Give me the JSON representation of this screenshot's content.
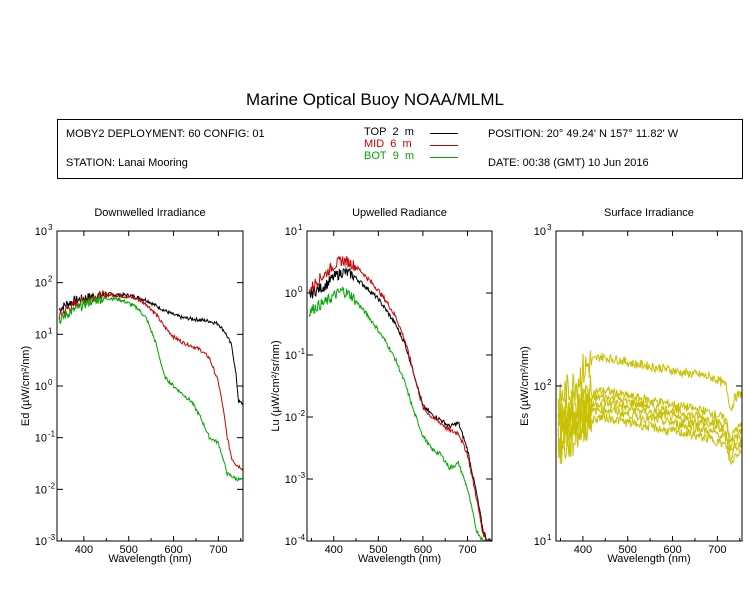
{
  "title": "Marine Optical Buoy NOAA/MLML",
  "info": {
    "deployment": "MOBY2 DEPLOYMENT: 60 CONFIG: 01",
    "station": "STATION: Lanai Mooring",
    "position": "POSITION: 20° 49.24' N   157° 11.82' W",
    "date": "DATE: 00:38 (GMT) 10 Jun 2016"
  },
  "legend": [
    {
      "name": "TOP",
      "depth": "2",
      "unit": "m",
      "color": "#000000"
    },
    {
      "name": "MID",
      "depth": "6",
      "unit": "m",
      "color": "#cc0000"
    },
    {
      "name": "BOT",
      "depth": "9",
      "unit": "m",
      "color": "#00aa00"
    }
  ],
  "chart_data": [
    {
      "type": "line",
      "title": "Downwelled Irradiance",
      "xlabel": "Wavelength (nm)",
      "ylabel": "Ed (µW/cm²/nm)",
      "xlim": [
        340,
        755
      ],
      "ylim": [
        0.001,
        1000
      ],
      "yscale": "log",
      "x_ticks": [
        400,
        500,
        600,
        700
      ],
      "y_ticks": [
        0.001,
        0.01,
        0.1,
        1,
        10,
        100,
        1000
      ],
      "y_tick_labels": [
        [
          "10",
          "-3"
        ],
        [
          "10",
          "-2"
        ],
        [
          "10",
          "-1"
        ],
        [
          "10",
          "0"
        ],
        [
          "10",
          "1"
        ],
        [
          "10",
          "2"
        ],
        [
          "10",
          "3"
        ]
      ],
      "series": [
        {
          "name": "TOP",
          "color": "#000000",
          "x": [
            345,
            360,
            380,
            400,
            420,
            440,
            460,
            480,
            500,
            520,
            540,
            560,
            580,
            600,
            620,
            640,
            660,
            680,
            700,
            715,
            730,
            740,
            745,
            755
          ],
          "y": [
            30,
            38,
            45,
            50,
            55,
            57,
            60,
            58,
            57,
            52,
            46,
            36,
            29,
            24,
            21,
            20,
            19,
            18,
            16,
            11,
            6,
            1.5,
            0.5,
            0.45
          ]
        },
        {
          "name": "MID",
          "color": "#cc0000",
          "x": [
            345,
            360,
            380,
            400,
            420,
            440,
            460,
            480,
            500,
            520,
            540,
            560,
            580,
            600,
            620,
            640,
            660,
            680,
            700,
            710,
            720,
            730,
            740,
            755
          ],
          "y": [
            22,
            30,
            38,
            45,
            52,
            56,
            58,
            56,
            53,
            48,
            38,
            25,
            14,
            9,
            7,
            6,
            5,
            3.5,
            1.2,
            0.4,
            0.1,
            0.04,
            0.03,
            0.025
          ]
        },
        {
          "name": "BOT",
          "color": "#00aa00",
          "x": [
            345,
            360,
            380,
            400,
            420,
            440,
            460,
            480,
            500,
            520,
            540,
            560,
            580,
            600,
            620,
            640,
            660,
            680,
            700,
            710,
            720,
            730,
            740,
            755
          ],
          "y": [
            18,
            24,
            30,
            38,
            45,
            48,
            50,
            47,
            40,
            32,
            20,
            7,
            1.5,
            1,
            0.7,
            0.5,
            0.25,
            0.1,
            0.08,
            0.04,
            0.02,
            0.018,
            0.016,
            0.015
          ]
        }
      ]
    },
    {
      "type": "line",
      "title": "Upwelled Radiance",
      "xlabel": "Wavelength (nm)",
      "ylabel": "Lu (µW/cm²/sr/nm)",
      "xlim": [
        340,
        755
      ],
      "ylim": [
        0.0001,
        10
      ],
      "yscale": "log",
      "x_ticks": [
        400,
        500,
        600,
        700
      ],
      "y_ticks": [
        0.0001,
        0.001,
        0.01,
        0.1,
        1,
        10
      ],
      "y_tick_labels": [
        [
          "10",
          "-4"
        ],
        [
          "10",
          "-3"
        ],
        [
          "10",
          "-2"
        ],
        [
          "10",
          "-1"
        ],
        [
          "10",
          "0"
        ],
        [
          "10",
          "1"
        ]
      ],
      "series": [
        {
          "name": "TOP",
          "color": "#000000",
          "x": [
            345,
            360,
            380,
            400,
            420,
            440,
            460,
            480,
            500,
            520,
            540,
            560,
            580,
            600,
            620,
            640,
            660,
            680,
            700,
            720,
            735,
            745,
            755
          ],
          "y": [
            0.9,
            1.1,
            1.3,
            1.8,
            2.2,
            2,
            1.5,
            1.1,
            0.8,
            0.5,
            0.3,
            0.15,
            0.05,
            0.015,
            0.011,
            0.009,
            0.007,
            0.008,
            0.003,
            0.0006,
            0.00015,
            0.0001,
            0.0001
          ]
        },
        {
          "name": "MID",
          "color": "#cc0000",
          "x": [
            345,
            360,
            380,
            400,
            420,
            440,
            460,
            480,
            500,
            520,
            540,
            560,
            580,
            600,
            620,
            640,
            660,
            680,
            700,
            720,
            735,
            745,
            755
          ],
          "y": [
            1.1,
            1.5,
            2,
            2.8,
            3.4,
            3,
            2.3,
            1.6,
            1.1,
            0.7,
            0.4,
            0.17,
            0.05,
            0.014,
            0.01,
            0.008,
            0.006,
            0.0055,
            0.0025,
            0.0005,
            0.00013,
            0.0001,
            0.0001
          ]
        },
        {
          "name": "BOT",
          "color": "#00aa00",
          "x": [
            345,
            360,
            380,
            400,
            420,
            440,
            460,
            480,
            500,
            520,
            540,
            560,
            580,
            600,
            620,
            640,
            660,
            680,
            700,
            720,
            735,
            745,
            755
          ],
          "y": [
            0.5,
            0.6,
            0.7,
            0.9,
            1.1,
            0.9,
            0.6,
            0.4,
            0.25,
            0.15,
            0.08,
            0.035,
            0.012,
            0.005,
            0.003,
            0.0025,
            0.0015,
            0.0018,
            0.0007,
            0.00015,
            0.0001,
            0.0001,
            0.0001
          ]
        }
      ]
    },
    {
      "type": "line",
      "title": "Surface Irradiance",
      "xlabel": "Wavelength (nm)",
      "ylabel": "Es (µW/cm²/nm)",
      "xlim": [
        340,
        755
      ],
      "ylim": [
        10,
        1000
      ],
      "yscale": "log",
      "x_ticks": [
        400,
        500,
        600,
        700
      ],
      "y_ticks": [
        10,
        100,
        1000
      ],
      "y_tick_labels": [
        [
          "10",
          "1"
        ],
        [
          "10",
          "2"
        ],
        [
          "10",
          "3"
        ]
      ],
      "series": [
        {
          "name": "",
          "color": "#c8c000",
          "x": [
            345,
            360,
            380,
            400,
            420,
            440,
            460,
            480,
            500,
            520,
            540,
            560,
            580,
            600,
            620,
            640,
            660,
            680,
            700,
            720,
            730,
            740,
            755
          ],
          "y": [
            75,
            90,
            100,
            125,
            145,
            155,
            150,
            148,
            142,
            138,
            136,
            132,
            130,
            126,
            122,
            120,
            118,
            115,
            110,
            100,
            70,
            85,
            90
          ]
        },
        {
          "name": "",
          "color": "#c8c000",
          "x": [
            345,
            360,
            380,
            400,
            420,
            440,
            460,
            480,
            500,
            520,
            540,
            560,
            580,
            600,
            620,
            640,
            660,
            680,
            700,
            720,
            730,
            740,
            755
          ],
          "y": [
            55,
            65,
            72,
            85,
            90,
            93,
            92,
            89,
            86,
            84,
            82,
            80,
            78,
            76,
            74,
            72,
            70,
            68,
            65,
            60,
            45,
            52,
            56
          ]
        },
        {
          "name": "",
          "color": "#c8c000",
          "x": [
            345,
            360,
            380,
            400,
            420,
            440,
            460,
            480,
            500,
            520,
            540,
            560,
            580,
            600,
            620,
            640,
            660,
            680,
            700,
            720,
            730,
            740,
            755
          ],
          "y": [
            50,
            58,
            65,
            77,
            82,
            85,
            84,
            81,
            79,
            77,
            75,
            73,
            71,
            69,
            67,
            65,
            63,
            61,
            59,
            55,
            40,
            47,
            51
          ]
        },
        {
          "name": "",
          "color": "#c8c000",
          "x": [
            345,
            360,
            380,
            400,
            420,
            440,
            460,
            480,
            500,
            520,
            540,
            560,
            580,
            600,
            620,
            640,
            660,
            680,
            700,
            720,
            730,
            740,
            755
          ],
          "y": [
            46,
            53,
            59,
            70,
            75,
            78,
            77,
            75,
            72,
            70,
            68,
            67,
            65,
            63,
            61,
            60,
            58,
            56,
            54,
            50,
            37,
            44,
            47
          ]
        },
        {
          "name": "",
          "color": "#c8c000",
          "x": [
            345,
            360,
            380,
            400,
            420,
            440,
            460,
            480,
            500,
            520,
            540,
            560,
            580,
            600,
            620,
            640,
            660,
            680,
            700,
            720,
            730,
            740,
            755
          ],
          "y": [
            42,
            48,
            54,
            64,
            68,
            71,
            70,
            68,
            66,
            64,
            62,
            61,
            59,
            58,
            56,
            55,
            53,
            51,
            49,
            46,
            34,
            40,
            43
          ]
        },
        {
          "name": "",
          "color": "#c8c000",
          "x": [
            345,
            360,
            380,
            400,
            420,
            440,
            460,
            480,
            500,
            520,
            540,
            560,
            580,
            600,
            620,
            640,
            660,
            680,
            700,
            720,
            730,
            740,
            755
          ],
          "y": [
            38,
            40,
            45,
            55,
            60,
            63,
            62,
            60,
            58,
            57,
            55,
            54,
            52,
            51,
            50,
            49,
            47,
            46,
            44,
            41,
            31,
            36,
            39
          ]
        }
      ]
    }
  ]
}
